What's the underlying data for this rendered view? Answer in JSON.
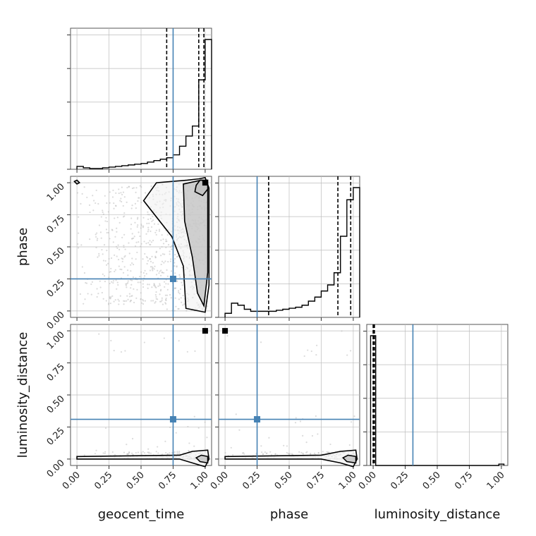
{
  "chart_data": {
    "type": "corner",
    "parameters": [
      "geocent_time",
      "phase",
      "luminosity_distance"
    ],
    "tick_labels": [
      "0.00",
      "0.25",
      "0.50",
      "0.75",
      "1.00"
    ],
    "ticks": [
      0,
      0.25,
      0.5,
      0.75,
      1.0
    ],
    "range": [
      -0.05,
      1.05
    ],
    "grid": true,
    "colors": {
      "truth": "#4682b4",
      "hist": "#000000",
      "quantile": "#000000",
      "scatter": "#bdbdbd",
      "grid": "#bdbdbd"
    },
    "truths": {
      "geocent_time": 0.75,
      "phase": 0.25,
      "luminosity_distance": 0.31
    },
    "quantiles": {
      "geocent_time": [
        0.7,
        0.95,
        0.99
      ],
      "phase": [
        0.34,
        0.88,
        0.98
      ],
      "luminosity_distance": [
        0.0,
        0.005,
        0.01
      ]
    },
    "histograms": {
      "geocent_time": {
        "bin_edges": [
          0.0,
          0.05,
          0.1,
          0.15,
          0.2,
          0.25,
          0.3,
          0.35,
          0.4,
          0.45,
          0.5,
          0.55,
          0.6,
          0.65,
          0.7,
          0.75,
          0.8,
          0.85,
          0.9,
          0.95,
          1.0,
          1.05
        ],
        "counts": [
          2,
          1,
          0.5,
          0.5,
          1,
          1.5,
          2,
          2.5,
          3,
          3.5,
          4,
          5,
          6,
          7,
          8,
          10,
          16,
          23,
          30,
          62,
          90
        ]
      },
      "phase": {
        "bin_edges": [
          0.0,
          0.05,
          0.1,
          0.15,
          0.2,
          0.25,
          0.3,
          0.35,
          0.4,
          0.45,
          0.5,
          0.55,
          0.6,
          0.65,
          0.7,
          0.75,
          0.8,
          0.85,
          0.9,
          0.95,
          1.0,
          1.05
        ],
        "counts": [
          2,
          7,
          6,
          4,
          3,
          3,
          3,
          3,
          3.5,
          4,
          4.5,
          5,
          6,
          8,
          10,
          13,
          16,
          22,
          40,
          58,
          64
        ]
      },
      "luminosity_distance": {
        "bin_edges": [
          -0.02,
          0.02,
          0.98,
          1.02
        ],
        "counts": [
          95,
          0,
          1
        ]
      }
    },
    "contours": {
      "phase_vs_geocent_time": [
        [
          [
            0.95,
            1.03
          ],
          [
            0.86,
            1.02
          ],
          [
            0.62,
            1.0
          ],
          [
            0.52,
            0.86
          ],
          [
            0.74,
            0.58
          ],
          [
            0.83,
            0.35
          ],
          [
            0.85,
            0.02
          ],
          [
            1.0,
            -0.01
          ],
          [
            1.03,
            0.2
          ],
          [
            1.03,
            0.6
          ],
          [
            1.03,
            0.96
          ],
          [
            1.0,
            1.04
          ]
        ],
        [
          [
            0.97,
            1.02
          ],
          [
            0.83,
            0.99
          ],
          [
            0.84,
            0.7
          ],
          [
            0.9,
            0.42
          ],
          [
            0.94,
            0.14
          ],
          [
            0.99,
            0.04
          ],
          [
            1.02,
            0.3
          ],
          [
            1.02,
            0.7
          ],
          [
            1.02,
            0.98
          ]
        ],
        [
          [
            0.96,
            1.02
          ],
          [
            0.93,
            0.98
          ],
          [
            0.92,
            0.93
          ],
          [
            0.98,
            0.9
          ],
          [
            1.02,
            0.95
          ],
          [
            1.02,
            1.02
          ]
        ],
        [
          [
            -0.02,
            1.01
          ],
          [
            0.0,
            0.99
          ],
          [
            0.02,
            1.0
          ],
          [
            0.0,
            1.02
          ]
        ]
      ],
      "luminosity_distance_vs_geocent_time": [
        [
          [
            0.0,
            0.02
          ],
          [
            0.8,
            0.03
          ],
          [
            0.9,
            0.06
          ],
          [
            1.02,
            0.07
          ],
          [
            1.03,
            0.0
          ],
          [
            1.0,
            -0.06
          ],
          [
            0.9,
            -0.03
          ],
          [
            0.8,
            0.0
          ],
          [
            0.0,
            0.0
          ]
        ],
        [
          [
            0.93,
            0.01
          ],
          [
            0.97,
            0.03
          ],
          [
            1.02,
            0.02
          ],
          [
            1.02,
            -0.03
          ],
          [
            0.96,
            -0.02
          ]
        ]
      ],
      "luminosity_distance_vs_phase": [
        [
          [
            0.0,
            0.02
          ],
          [
            0.75,
            0.03
          ],
          [
            0.9,
            0.06
          ],
          [
            1.02,
            0.07
          ],
          [
            1.03,
            0.0
          ],
          [
            1.0,
            -0.06
          ],
          [
            0.9,
            -0.03
          ],
          [
            0.75,
            0.0
          ],
          [
            0.0,
            0.0
          ]
        ],
        [
          [
            0.92,
            0.01
          ],
          [
            0.96,
            0.03
          ],
          [
            1.02,
            0.02
          ],
          [
            1.02,
            -0.03
          ],
          [
            0.95,
            -0.02
          ]
        ]
      ]
    },
    "dense_points": {
      "phase_vs_geocent_time": [
        [
          1.0,
          1.0
        ]
      ],
      "luminosity_distance_vs_geocent_time": [
        [
          1.0,
          1.0
        ]
      ],
      "luminosity_distance_vs_phase": [
        [
          0.0,
          1.0
        ]
      ]
    }
  }
}
